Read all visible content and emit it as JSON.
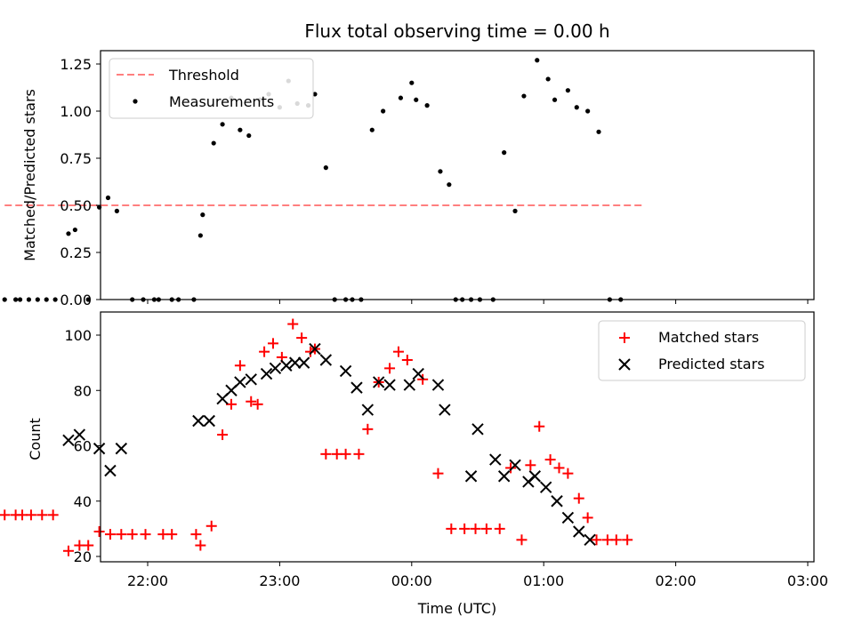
{
  "chart_data": [
    {
      "type": "scatter",
      "title": "Flux total observing time = 0.00 h",
      "xlabel": "",
      "ylabel": "Matched/Predicted stars",
      "ylim": [
        0,
        1.3
      ],
      "yticks": [
        "0.00",
        "0.25",
        "0.50",
        "0.75",
        "1.00",
        "1.25"
      ],
      "legend_position": "upper-left",
      "x_unit": "minutes after 21:00 UTC",
      "series": [
        {
          "name": "Threshold",
          "kind": "line",
          "color": "#ff7f7f",
          "x": [
            -5,
            285
          ],
          "y": [
            0.5,
            0.5
          ]
        },
        {
          "name": "Measurements",
          "kind": "scatter",
          "color": "#000000",
          "x": [
            -5,
            0,
            2,
            6,
            10,
            14,
            18,
            24,
            27,
            33,
            38,
            42,
            46,
            53,
            58,
            63,
            65,
            71,
            74,
            81,
            84,
            85,
            90,
            94,
            98,
            102,
            106,
            111,
            115,
            120,
            124,
            128,
            133,
            136,
            141,
            145,
            150,
            153,
            157,
            162,
            167,
            175,
            180,
            182,
            187,
            193,
            197,
            200,
            203,
            207,
            211,
            217,
            222,
            227,
            231,
            237,
            242,
            245,
            251,
            255,
            260,
            265,
            270,
            275
          ],
          "y": [
            0,
            0,
            0,
            0,
            0,
            0,
            0,
            0.35,
            0.37,
            0,
            0.49,
            0.54,
            0.47,
            0,
            0,
            0,
            0,
            0,
            0,
            0,
            0.34,
            0.45,
            0.83,
            0.93,
            1.07,
            0.9,
            0.87,
            1.06,
            1.09,
            1.02,
            1.16,
            1.04,
            1.03,
            1.09,
            0.7,
            0,
            0,
            0,
            0,
            0.9,
            1.0,
            1.07,
            1.15,
            1.06,
            1.03,
            0.68,
            0.61,
            0,
            0,
            0,
            0,
            0,
            0.78,
            0.47,
            1.08,
            1.27,
            1.17,
            1.06,
            1.11,
            1.02,
            1.0,
            0.89,
            0,
            0
          ]
        }
      ]
    },
    {
      "type": "scatter",
      "title": "",
      "xlabel": "Time (UTC)",
      "ylabel": "Count",
      "ylim": [
        18,
        110
      ],
      "yticks": [
        "20",
        "40",
        "60",
        "80",
        "100"
      ],
      "xticks": [
        "22:00",
        "23:00",
        "00:00",
        "01:00",
        "02:00",
        "03:00"
      ],
      "legend_position": "upper-right",
      "x_unit": "minutes after 21:00 UTC",
      "series": [
        {
          "name": "Matched stars",
          "kind": "plus",
          "color": "#ff0000",
          "x": [
            -5,
            0,
            3,
            7,
            12,
            17,
            24,
            29,
            33,
            38,
            43,
            48,
            53,
            59,
            67,
            71,
            82,
            84,
            89,
            94,
            98,
            102,
            107,
            110,
            113,
            117,
            121,
            126,
            130,
            134,
            136,
            141,
            146,
            150,
            156,
            160,
            165,
            170,
            174,
            178,
            185,
            192,
            198,
            204,
            209,
            214,
            220,
            225,
            230,
            234,
            238,
            243,
            247,
            251,
            256,
            260,
            264,
            269,
            273,
            278
          ],
          "y": [
            35,
            35,
            35,
            35,
            35,
            35,
            22,
            24,
            24,
            29,
            28,
            28,
            28,
            28,
            28,
            28,
            28,
            24,
            31,
            64,
            75,
            89,
            76,
            75,
            94,
            97,
            92,
            104,
            99,
            94,
            95,
            57,
            57,
            57,
            57,
            66,
            83,
            88,
            94,
            91,
            84,
            50,
            30,
            30,
            30,
            30,
            30,
            52,
            26,
            53,
            67,
            55,
            52,
            50,
            41,
            34,
            26,
            26,
            26,
            26
          ]
        },
        {
          "name": "Predicted stars",
          "kind": "cross",
          "color": "#000000",
          "x": [
            24,
            29,
            38,
            43,
            48,
            83,
            88,
            94,
            98,
            102,
            107,
            114,
            118,
            123,
            127,
            131,
            136,
            141,
            150,
            155,
            160,
            165,
            170,
            179,
            183,
            192,
            195,
            207,
            210,
            218,
            222,
            227,
            233,
            236,
            241,
            246,
            251,
            256,
            261
          ],
          "y": [
            62,
            64,
            59,
            51,
            59,
            69,
            69,
            77,
            80,
            83,
            84,
            86,
            88,
            89,
            90,
            90,
            95,
            91,
            87,
            81,
            73,
            83,
            82,
            82,
            86,
            82,
            73,
            49,
            66,
            55,
            49,
            53,
            47,
            49,
            45,
            40,
            34,
            29,
            26
          ]
        }
      ]
    }
  ]
}
